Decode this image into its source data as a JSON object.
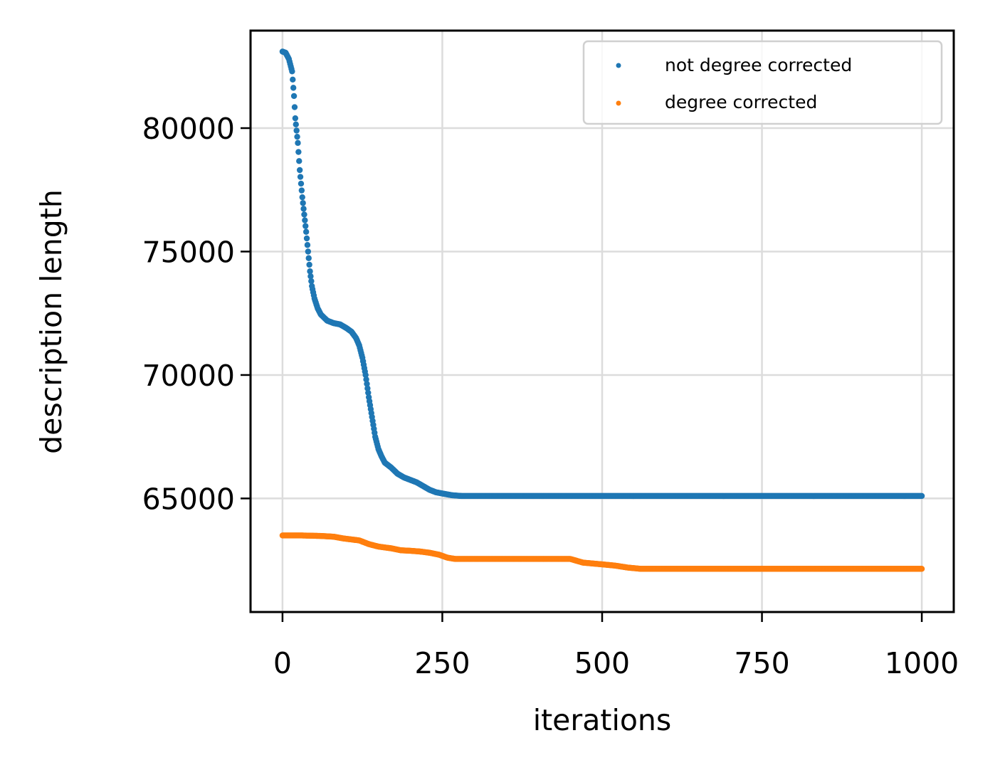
{
  "chart_data": {
    "type": "scatter",
    "title": "",
    "xlabel": "iterations",
    "ylabel": "description length",
    "xlim": [
      -50,
      1050
    ],
    "ylim": [
      60400,
      83950
    ],
    "xticks": [
      0,
      250,
      500,
      750,
      1000
    ],
    "yticks": [
      65000,
      70000,
      75000,
      80000
    ],
    "grid": true,
    "legend_position": "top-right",
    "series": [
      {
        "name": "not degree corrected",
        "color": "#1f77b4",
        "curve": [
          [
            0,
            83100
          ],
          [
            5,
            83050
          ],
          [
            10,
            82800
          ],
          [
            15,
            82300
          ],
          [
            18,
            81300
          ],
          [
            20,
            80400
          ],
          [
            24,
            79400
          ],
          [
            27,
            78300
          ],
          [
            31,
            77200
          ],
          [
            34,
            76500
          ],
          [
            37,
            75800
          ],
          [
            40,
            75000
          ],
          [
            43,
            74200
          ],
          [
            46,
            73600
          ],
          [
            50,
            73100
          ],
          [
            55,
            72700
          ],
          [
            60,
            72450
          ],
          [
            70,
            72200
          ],
          [
            80,
            72100
          ],
          [
            90,
            72050
          ],
          [
            100,
            71900
          ],
          [
            108,
            71750
          ],
          [
            115,
            71500
          ],
          [
            120,
            71200
          ],
          [
            125,
            70700
          ],
          [
            130,
            70000
          ],
          [
            135,
            69100
          ],
          [
            140,
            68300
          ],
          [
            145,
            67500
          ],
          [
            150,
            67000
          ],
          [
            155,
            66700
          ],
          [
            160,
            66450
          ],
          [
            170,
            66250
          ],
          [
            180,
            66000
          ],
          [
            190,
            65850
          ],
          [
            200,
            65750
          ],
          [
            210,
            65650
          ],
          [
            220,
            65500
          ],
          [
            230,
            65350
          ],
          [
            240,
            65250
          ],
          [
            250,
            65200
          ],
          [
            265,
            65130
          ],
          [
            280,
            65100
          ],
          [
            300,
            65100
          ],
          [
            1000,
            65100
          ]
        ]
      },
      {
        "name": "degree corrected",
        "color": "#ff7f0e",
        "curve": [
          [
            0,
            63500
          ],
          [
            30,
            63500
          ],
          [
            60,
            63480
          ],
          [
            80,
            63450
          ],
          [
            95,
            63380
          ],
          [
            120,
            63300
          ],
          [
            135,
            63150
          ],
          [
            150,
            63050
          ],
          [
            170,
            62980
          ],
          [
            185,
            62900
          ],
          [
            200,
            62880
          ],
          [
            215,
            62850
          ],
          [
            230,
            62800
          ],
          [
            245,
            62720
          ],
          [
            258,
            62600
          ],
          [
            270,
            62550
          ],
          [
            300,
            62550
          ],
          [
            350,
            62550
          ],
          [
            400,
            62550
          ],
          [
            450,
            62550
          ],
          [
            470,
            62400
          ],
          [
            500,
            62330
          ],
          [
            520,
            62280
          ],
          [
            540,
            62200
          ],
          [
            560,
            62150
          ],
          [
            600,
            62150
          ],
          [
            1000,
            62150
          ]
        ]
      }
    ]
  }
}
